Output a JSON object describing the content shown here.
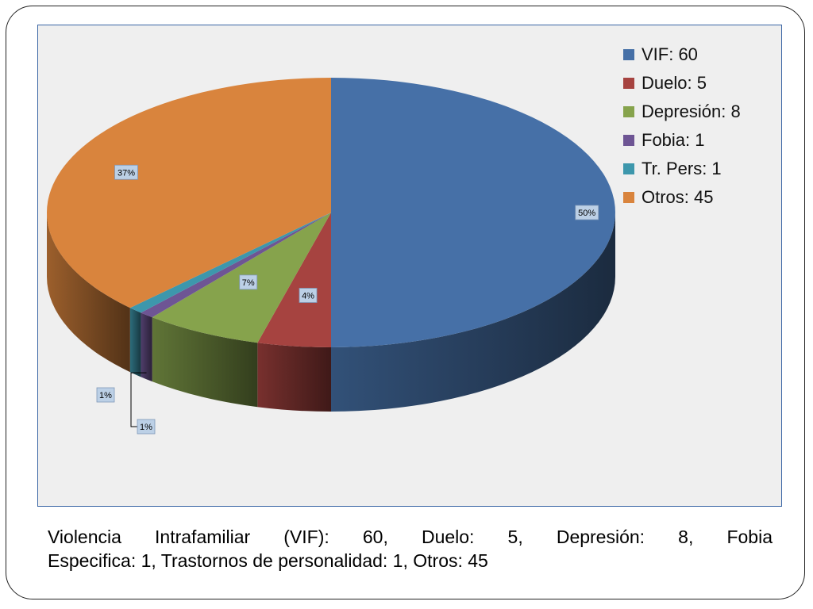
{
  "chart_data": {
    "type": "pie",
    "title": "",
    "slices": [
      {
        "label": "VIF",
        "value": 60,
        "percent_label": "50%",
        "color": "#4670a7"
      },
      {
        "label": "Duelo",
        "value": 5,
        "percent_label": "4%",
        "color": "#a64340"
      },
      {
        "label": "Depresión",
        "value": 8,
        "percent_label": "7%",
        "color": "#86a34c"
      },
      {
        "label": "Fobia",
        "value": 1,
        "percent_label": "1%",
        "color": "#6e5594"
      },
      {
        "label": "Tr. Pers",
        "value": 1,
        "percent_label": "1%",
        "color": "#3d97ac"
      },
      {
        "label": "Otros",
        "value": 45,
        "percent_label": "37%",
        "color": "#d9843d"
      }
    ],
    "legend_entries": [
      "VIF: 60",
      "Duelo: 5",
      "Depresión: 8",
      "Fobia: 1",
      "Tr. Pers: 1",
      "Otros: 45"
    ],
    "legend_position": "top-right",
    "style": "3d-pie"
  },
  "caption": {
    "line1": "Violencia Intrafamiliar (VIF): 60, Duelo: 5, Depresión: 8, Fobia",
    "line2": "Especifica: 1, Trastornos de personalidad: 1, Otros: 45"
  }
}
